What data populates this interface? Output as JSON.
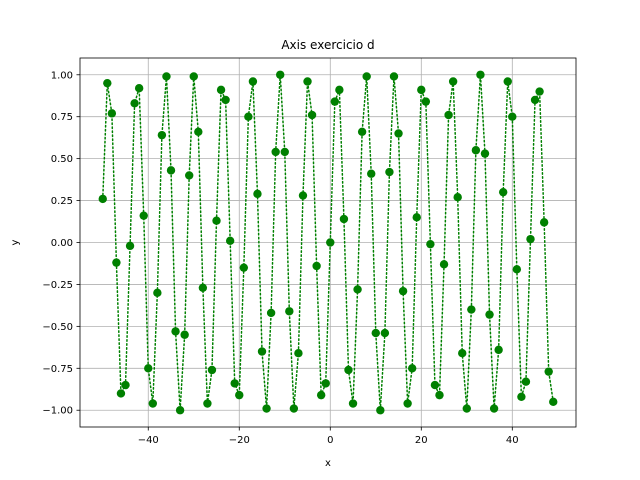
{
  "chart_data": {
    "type": "line",
    "title": "Axis exercicio d",
    "xlabel": "x",
    "ylabel": "y",
    "xlim": [
      -55,
      54
    ],
    "ylim": [
      -1.1,
      1.1
    ],
    "xticks": [
      -40,
      -20,
      0,
      20,
      40
    ],
    "yticks": [
      -1.0,
      -0.75,
      -0.5,
      -0.25,
      0.0,
      0.25,
      0.5,
      0.75,
      1.0
    ],
    "xtick_labels": [
      "−40",
      "−20",
      "0",
      "20",
      "40"
    ],
    "ytick_labels": [
      "−1.00",
      "−0.75",
      "−0.50",
      "−0.25",
      "0.00",
      "0.25",
      "0.50",
      "0.75",
      "1.00"
    ],
    "grid": true,
    "series": [
      {
        "line_style": "dotted",
        "marker": "circle",
        "color": "#008000",
        "x": [
          -50,
          -49,
          -48,
          -47,
          -46,
          -45,
          -44,
          -43,
          -42,
          -41,
          -40,
          -39,
          -38,
          -37,
          -36,
          -35,
          -34,
          -33,
          -32,
          -31,
          -30,
          -29,
          -28,
          -27,
          -26,
          -25,
          -24,
          -23,
          -22,
          -21,
          -20,
          -19,
          -18,
          -17,
          -16,
          -15,
          -14,
          -13,
          -12,
          -11,
          -10,
          -9,
          -8,
          -7,
          -6,
          -5,
          -4,
          -3,
          -2,
          -1,
          0,
          1,
          2,
          3,
          4,
          5,
          6,
          7,
          8,
          9,
          10,
          11,
          12,
          13,
          14,
          15,
          16,
          17,
          18,
          19,
          20,
          21,
          22,
          23,
          24,
          25,
          26,
          27,
          28,
          29,
          30,
          31,
          32,
          33,
          34,
          35,
          36,
          37,
          38,
          39,
          40,
          41,
          42,
          43,
          44,
          45,
          46,
          47,
          48,
          49
        ],
        "y": [
          0.26,
          0.95,
          0.77,
          -0.12,
          -0.9,
          -0.85,
          -0.02,
          0.83,
          0.92,
          0.16,
          -0.75,
          -0.96,
          -0.3,
          0.64,
          0.99,
          0.43,
          -0.53,
          -1.0,
          -0.55,
          0.4,
          0.99,
          0.66,
          -0.27,
          -0.96,
          -0.76,
          0.13,
          0.91,
          0.85,
          0.01,
          -0.84,
          -0.91,
          -0.15,
          0.75,
          0.96,
          0.29,
          -0.65,
          -0.99,
          -0.42,
          0.54,
          1.0,
          0.54,
          -0.41,
          -0.99,
          -0.66,
          0.28,
          0.96,
          0.76,
          -0.14,
          -0.91,
          -0.84,
          0.0,
          0.84,
          0.91,
          0.14,
          -0.76,
          -0.96,
          -0.28,
          0.66,
          0.99,
          0.41,
          -0.54,
          -1.0,
          -0.54,
          0.42,
          0.99,
          0.65,
          -0.29,
          -0.96,
          -0.75,
          0.15,
          0.91,
          0.84,
          -0.01,
          -0.85,
          -0.91,
          -0.13,
          0.76,
          0.96,
          0.27,
          -0.66,
          -0.99,
          -0.4,
          0.55,
          1.0,
          0.53,
          -0.43,
          -0.99,
          -0.64,
          0.3,
          0.96,
          0.75,
          -0.16,
          -0.92,
          -0.83,
          0.02,
          0.85,
          0.9,
          0.12,
          -0.77,
          -0.95
        ]
      }
    ]
  }
}
